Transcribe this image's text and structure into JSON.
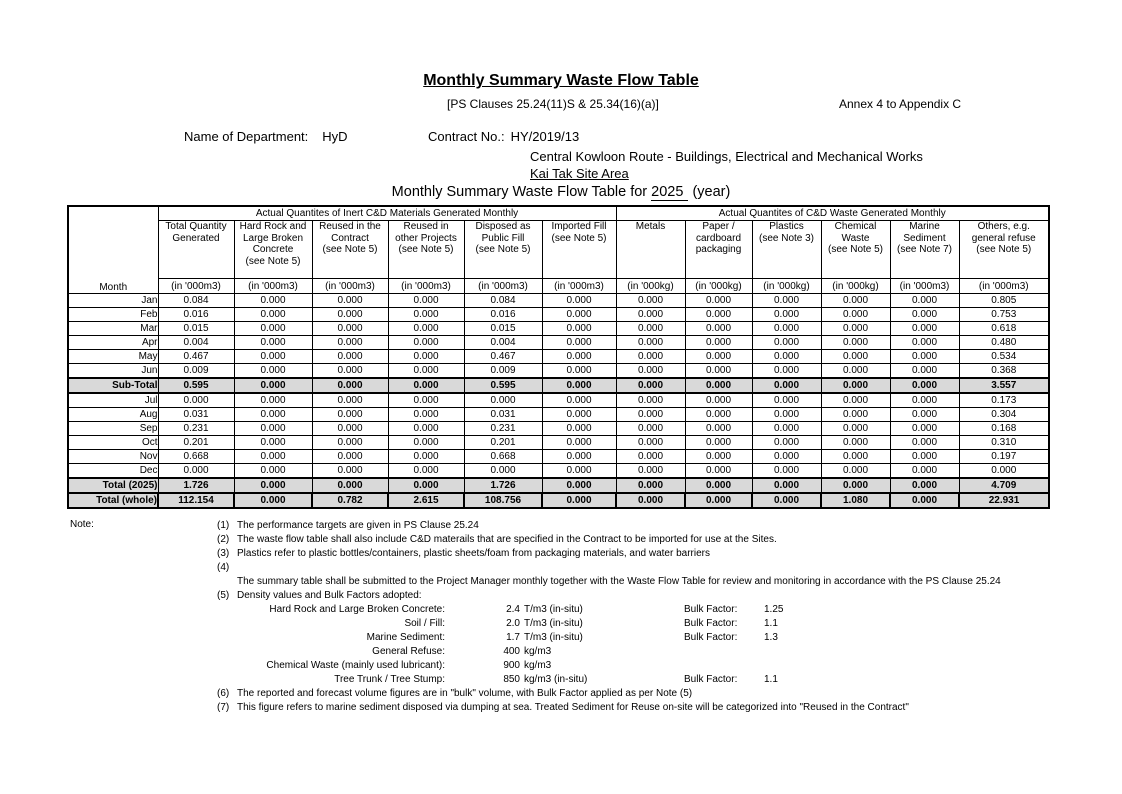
{
  "page": {
    "title": "Monthly Summary Waste Flow Table",
    "ps_clauses": "[PS Clauses 25.24(11)S & 25.34(16)(a)]",
    "annex": "Annex 4 to Appendix C",
    "department_label": "Name of Department:",
    "department_value": "HyD",
    "contract_label": "Contract No.:",
    "contract_value": "HY/2019/13",
    "project_line1": "Central Kowloon Route - Buildings, Electrical and Mechanical Works",
    "project_line2": "Kai Tak Site Area",
    "table_title_prefix": "Monthly Summary Waste Flow Table for ",
    "table_title_year": "2025",
    "table_title_suffix": "(year)"
  },
  "table": {
    "group1_label": "Actual Quantites of Inert C&D Materials Generated Monthly",
    "group2_label": "Actual Quantites of C&D Waste Generated Monthly",
    "month_label": "Month",
    "columns": [
      {
        "name": "Total Quantity\nGenerated",
        "unit": "(in '000m3)"
      },
      {
        "name": "Hard Rock and\nLarge Broken\nConcrete\n(see Note 5)",
        "unit": "(in '000m3)"
      },
      {
        "name": "Reused in the\nContract\n(see Note 5)",
        "unit": "(in '000m3)"
      },
      {
        "name": "Reused in\nother Projects\n(see Note 5)",
        "unit": "(in '000m3)"
      },
      {
        "name": "Disposed as\nPublic Fill\n(see Note 5)",
        "unit": "(in '000m3)"
      },
      {
        "name": "Imported Fill\n(see Note 5)",
        "unit": "(in '000m3)"
      },
      {
        "name": "Metals",
        "unit": "(in '000kg)"
      },
      {
        "name": "Paper /\ncardboard\npackaging",
        "unit": "(in '000kg)"
      },
      {
        "name": "Plastics\n(see Note 3)",
        "unit": "(in '000kg)"
      },
      {
        "name": "Chemical\nWaste\n(see Note 5)",
        "unit": "(in '000kg)"
      },
      {
        "name": "Marine\nSediment\n(see Note 7)",
        "unit": "(in '000m3)"
      },
      {
        "name": "Others, e.g.\ngeneral refuse\n(see Note 5)",
        "unit": "(in '000m3)"
      }
    ],
    "rows": [
      {
        "label": "Jan",
        "style": "data",
        "values": [
          "0.084",
          "0.000",
          "0.000",
          "0.000",
          "0.084",
          "0.000",
          "0.000",
          "0.000",
          "0.000",
          "0.000",
          "0.000",
          "0.805"
        ]
      },
      {
        "label": "Feb",
        "style": "data",
        "values": [
          "0.016",
          "0.000",
          "0.000",
          "0.000",
          "0.016",
          "0.000",
          "0.000",
          "0.000",
          "0.000",
          "0.000",
          "0.000",
          "0.753"
        ]
      },
      {
        "label": "Mar",
        "style": "data",
        "values": [
          "0.015",
          "0.000",
          "0.000",
          "0.000",
          "0.015",
          "0.000",
          "0.000",
          "0.000",
          "0.000",
          "0.000",
          "0.000",
          "0.618"
        ]
      },
      {
        "label": "Apr",
        "style": "data",
        "values": [
          "0.004",
          "0.000",
          "0.000",
          "0.000",
          "0.004",
          "0.000",
          "0.000",
          "0.000",
          "0.000",
          "0.000",
          "0.000",
          "0.480"
        ]
      },
      {
        "label": "May",
        "style": "data",
        "values": [
          "0.467",
          "0.000",
          "0.000",
          "0.000",
          "0.467",
          "0.000",
          "0.000",
          "0.000",
          "0.000",
          "0.000",
          "0.000",
          "0.534"
        ]
      },
      {
        "label": "Jun",
        "style": "data",
        "values": [
          "0.009",
          "0.000",
          "0.000",
          "0.000",
          "0.009",
          "0.000",
          "0.000",
          "0.000",
          "0.000",
          "0.000",
          "0.000",
          "0.368"
        ]
      },
      {
        "label": "Sub-Total",
        "style": "subtotal",
        "values": [
          "0.595",
          "0.000",
          "0.000",
          "0.000",
          "0.595",
          "0.000",
          "0.000",
          "0.000",
          "0.000",
          "0.000",
          "0.000",
          "3.557"
        ]
      },
      {
        "label": "Jul",
        "style": "data",
        "values": [
          "0.000",
          "0.000",
          "0.000",
          "0.000",
          "0.000",
          "0.000",
          "0.000",
          "0.000",
          "0.000",
          "0.000",
          "0.000",
          "0.173"
        ]
      },
      {
        "label": "Aug",
        "style": "data",
        "values": [
          "0.031",
          "0.000",
          "0.000",
          "0.000",
          "0.031",
          "0.000",
          "0.000",
          "0.000",
          "0.000",
          "0.000",
          "0.000",
          "0.304"
        ]
      },
      {
        "label": "Sep",
        "style": "data",
        "values": [
          "0.231",
          "0.000",
          "0.000",
          "0.000",
          "0.231",
          "0.000",
          "0.000",
          "0.000",
          "0.000",
          "0.000",
          "0.000",
          "0.168"
        ]
      },
      {
        "label": "Oct",
        "style": "data",
        "values": [
          "0.201",
          "0.000",
          "0.000",
          "0.000",
          "0.201",
          "0.000",
          "0.000",
          "0.000",
          "0.000",
          "0.000",
          "0.000",
          "0.310"
        ]
      },
      {
        "label": "Nov",
        "style": "data",
        "values": [
          "0.668",
          "0.000",
          "0.000",
          "0.000",
          "0.668",
          "0.000",
          "0.000",
          "0.000",
          "0.000",
          "0.000",
          "0.000",
          "0.197"
        ]
      },
      {
        "label": "Dec",
        "style": "data",
        "values": [
          "0.000",
          "0.000",
          "0.000",
          "0.000",
          "0.000",
          "0.000",
          "0.000",
          "0.000",
          "0.000",
          "0.000",
          "0.000",
          "0.000"
        ]
      },
      {
        "label": "Total (2025)",
        "style": "total",
        "values": [
          "1.726",
          "0.000",
          "0.000",
          "0.000",
          "1.726",
          "0.000",
          "0.000",
          "0.000",
          "0.000",
          "0.000",
          "0.000",
          "4.709"
        ]
      },
      {
        "label": "Total (whole)",
        "style": "total_whole",
        "values": [
          "112.154",
          "0.000",
          "0.782",
          "2.615",
          "108.756",
          "0.000",
          "0.000",
          "0.000",
          "0.000",
          "1.080",
          "0.000",
          "22.931"
        ]
      }
    ]
  },
  "notes": {
    "label": "Note:",
    "items": [
      {
        "num": "(1)",
        "text": "The performance targets are given in PS Clause 25.24"
      },
      {
        "num": "(2)",
        "text": "The waste flow table shall also include C&D materails that are specified in the Contract to be imported for use at the Sites."
      },
      {
        "num": "(3)",
        "text": "Plastics refer to plastic bottles/containers, plastic sheets/foam from packaging materials, and water barriers"
      },
      {
        "num": "(4)",
        "text": ""
      },
      {
        "num": "",
        "text": "The summary table shall be submitted to the Project Manager monthly together with the Waste Flow Table for review and monitoring in accordance with the PS Clause 25.24"
      },
      {
        "num": "(5)",
        "text": "Density values and Bulk Factors adopted:"
      }
    ],
    "density_rows": [
      {
        "label": "Hard Rock and Large Broken Concrete:",
        "value": "2.4",
        "unit": "T/m3 (in-situ)",
        "bulk_label": "Bulk Factor:",
        "bulk_value": "1.25"
      },
      {
        "label": "Soil / Fill:",
        "value": "2.0",
        "unit": "T/m3 (in-situ)",
        "bulk_label": "Bulk Factor:",
        "bulk_value": "1.1"
      },
      {
        "label": "Marine Sediment:",
        "value": "1.7",
        "unit": "T/m3 (in-situ)",
        "bulk_label": "Bulk Factor:",
        "bulk_value": "1.3"
      },
      {
        "label": "General Refuse:",
        "value": "400",
        "unit": "kg/m3",
        "bulk_label": "",
        "bulk_value": ""
      },
      {
        "label": "Chemical Waste (mainly used lubricant):",
        "value": "900",
        "unit": "kg/m3",
        "bulk_label": "",
        "bulk_value": ""
      },
      {
        "label": "Tree Trunk / Tree Stump:",
        "value": "850",
        "unit": "kg/m3 (in-situ)",
        "bulk_label": "Bulk Factor:",
        "bulk_value": "1.1"
      }
    ],
    "items_after": [
      {
        "num": "(6)",
        "text": "The reported and forecast volume figures are in \"bulk\" volume, with Bulk Factor applied as per Note (5)"
      },
      {
        "num": "(7)",
        "text": "This figure refers to marine sediment disposed via dumping at sea. Treated Sediment for Reuse on-site will be categorized into \"Reused in the Contract\""
      }
    ]
  }
}
